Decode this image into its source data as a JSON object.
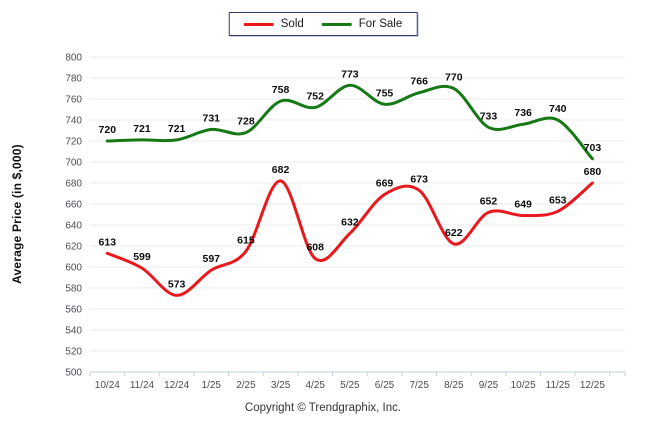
{
  "legend": {
    "items": [
      {
        "label": "Sold",
        "color": "#e9181d"
      },
      {
        "label": "For Sale",
        "color": "#157a15"
      }
    ]
  },
  "y_axis_title": "Average Price (in $,000)",
  "footer": {
    "copyright": "Copyright © Trendgraphix, Inc."
  },
  "chart_data": {
    "type": "line",
    "title": "",
    "categories": [
      "10/24",
      "11/24",
      "12/24",
      "1/25",
      "2/25",
      "3/25",
      "4/25",
      "5/25",
      "6/25",
      "7/25",
      "8/25",
      "9/25",
      "10/25",
      "11/25",
      "12/25"
    ],
    "series": [
      {
        "name": "Sold",
        "color": "#e9181d",
        "values": [
          613,
          599,
          573,
          597,
          615,
          682,
          608,
          632,
          669,
          673,
          622,
          652,
          649,
          653,
          680
        ]
      },
      {
        "name": "For Sale",
        "color": "#157a15",
        "values": [
          720,
          721,
          721,
          731,
          728,
          758,
          752,
          773,
          755,
          766,
          770,
          733,
          736,
          740,
          703
        ]
      }
    ],
    "xlabel": "",
    "ylabel": "Average Price (in $,000)",
    "ylim": [
      500,
      800
    ],
    "ytick_step": 20,
    "grid": true,
    "smooth": true,
    "point_labels": true,
    "legend_position": "top-center"
  },
  "colors": {
    "gridline": "#ebebeb",
    "axis_line": "#c8cedb",
    "tick_label": "#4a4e57",
    "data_label": "#0d0d0d"
  }
}
